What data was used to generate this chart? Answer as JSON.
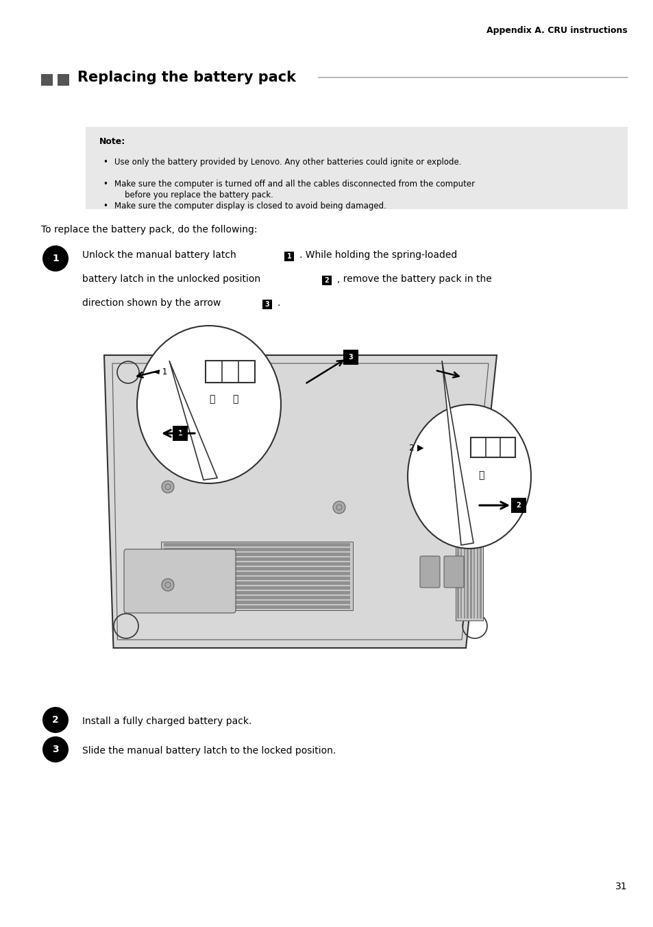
{
  "page_width": 9.54,
  "page_height": 13.52,
  "bg_color": "#ffffff",
  "header_text": "Appendix A. CRU instructions",
  "title_text": "Replacing the battery pack",
  "note_label": "Note:",
  "note_bullets": [
    "Use only the battery provided by Lenovo. Any other batteries could ignite or explode.",
    "Make sure the computer is turned off and all the cables disconnected from the computer\n    before you replace the battery pack.",
    "Make sure the computer display is closed to avoid being damaged."
  ],
  "intro_text": "To replace the battery pack, do the following:",
  "step1_text_parts": [
    "Unlock the manual battery latch ",
    " . While holding the spring-loaded",
    "battery latch in the unlocked position ",
    " , remove the battery pack in the",
    "direction shown by the arrow ",
    " ."
  ],
  "step2_text": "Install a fully charged battery pack.",
  "step3_text": "Slide the manual battery latch to the locked position.",
  "page_number": "31"
}
